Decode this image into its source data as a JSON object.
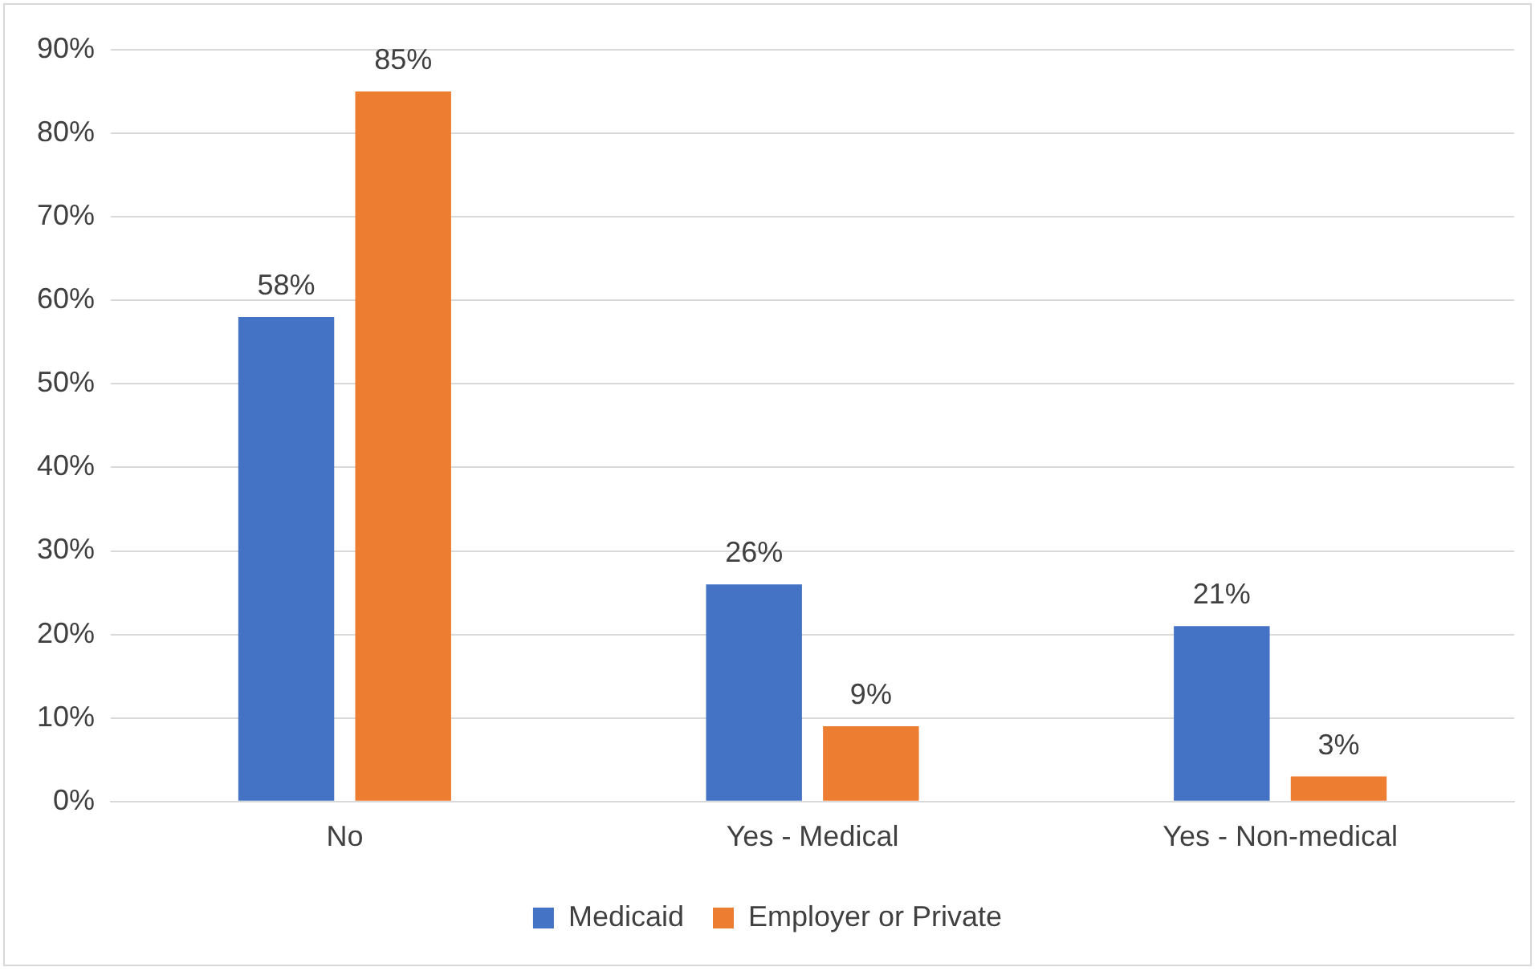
{
  "chart_data": {
    "type": "bar",
    "categories": [
      "No",
      "Yes - Medical",
      "Yes - Non-medical"
    ],
    "series": [
      {
        "name": "Medicaid",
        "color": "#4472c4",
        "values": [
          58,
          26,
          21
        ],
        "value_labels": [
          "58%",
          "26%",
          "21%"
        ]
      },
      {
        "name": "Employer or Private",
        "color": "#ed7d31",
        "values": [
          85,
          9,
          3
        ],
        "value_labels": [
          "85%",
          "9%",
          "3%"
        ]
      }
    ],
    "ylim": [
      0,
      90
    ],
    "yticks": [
      {
        "value": 0,
        "label": "0%"
      },
      {
        "value": 10,
        "label": "10%"
      },
      {
        "value": 20,
        "label": "20%"
      },
      {
        "value": 30,
        "label": "30%"
      },
      {
        "value": 40,
        "label": "40%"
      },
      {
        "value": 50,
        "label": "50%"
      },
      {
        "value": 60,
        "label": "60%"
      },
      {
        "value": 70,
        "label": "70%"
      },
      {
        "value": 80,
        "label": "80%"
      },
      {
        "value": 90,
        "label": "90%"
      }
    ],
    "grid": "y",
    "legend": "bottom"
  }
}
